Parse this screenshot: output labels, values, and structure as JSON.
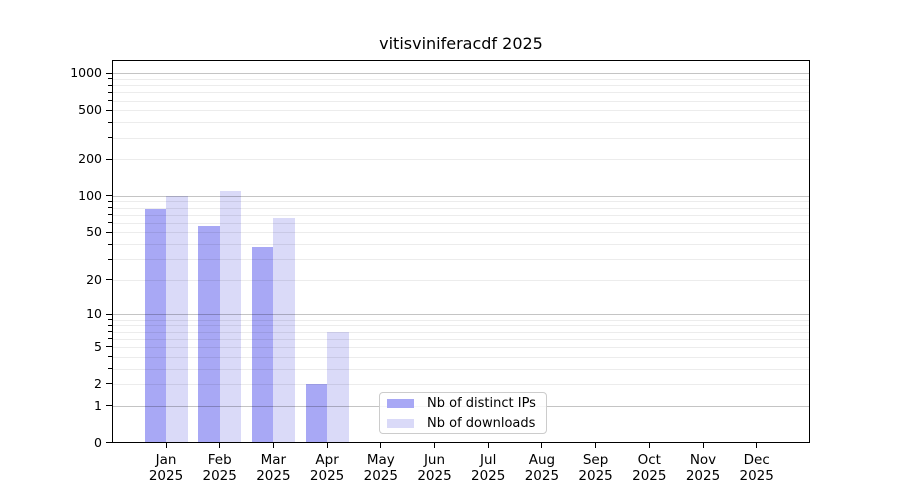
{
  "chart_data": {
    "type": "bar",
    "title": "vitisviniferacdf 2025",
    "categories": [
      "Jan 2025",
      "Feb 2025",
      "Mar 2025",
      "Apr 2025",
      "May 2025",
      "Jun 2025",
      "Jul 2025",
      "Aug 2025",
      "Sep 2025",
      "Oct 2025",
      "Nov 2025",
      "Dec 2025"
    ],
    "series": [
      {
        "name": "Nb of distinct IPs",
        "color": "#a8a8f5",
        "values": [
          78,
          57,
          38,
          2,
          0,
          0,
          0,
          0,
          0,
          0,
          0,
          0
        ]
      },
      {
        "name": "Nb of downloads",
        "color": "#dadaf8",
        "values": [
          100,
          110,
          66,
          7,
          0,
          0,
          0,
          0,
          0,
          0,
          0,
          0
        ]
      }
    ],
    "xlabel": "",
    "ylabel": "",
    "yscale": "log1p",
    "ylim": [
      0,
      1280
    ],
    "y_ticks": [
      0,
      1,
      2,
      5,
      10,
      20,
      50,
      100,
      200,
      500,
      1000
    ],
    "grid": "horizontal",
    "legend_position": "lower center"
  },
  "colors": {
    "bar_distinct_ips": "#a8a8f5",
    "bar_downloads": "#dadaf8",
    "gridline_decade": "rgba(0,0,0,0.23)",
    "gridline_minor": "rgba(0,0,0,0.075)",
    "axis": "#000000",
    "legend_border": "#cccccc"
  }
}
